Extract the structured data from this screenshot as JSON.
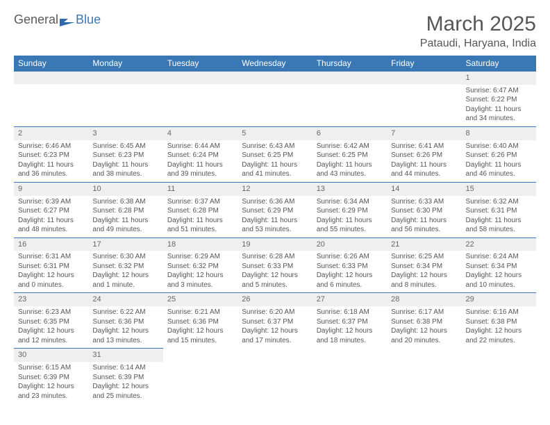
{
  "logo": {
    "general": "General",
    "blue": "Blue"
  },
  "title": "March 2025",
  "location": "Pataudi, Haryana, India",
  "colors": {
    "header_bg": "#3a78b5",
    "header_text": "#ffffff",
    "daynum_bg": "#efefef",
    "body_text": "#555555",
    "border": "#3a78b5"
  },
  "fonts": {
    "title_size": 30,
    "location_size": 16,
    "header_size": 12,
    "cell_size": 10
  },
  "weekdays": [
    "Sunday",
    "Monday",
    "Tuesday",
    "Wednesday",
    "Thursday",
    "Friday",
    "Saturday"
  ],
  "weeks": [
    [
      null,
      null,
      null,
      null,
      null,
      null,
      {
        "n": "1",
        "sr": "Sunrise: 6:47 AM",
        "ss": "Sunset: 6:22 PM",
        "dl": "Daylight: 11 hours and 34 minutes."
      }
    ],
    [
      {
        "n": "2",
        "sr": "Sunrise: 6:46 AM",
        "ss": "Sunset: 6:23 PM",
        "dl": "Daylight: 11 hours and 36 minutes."
      },
      {
        "n": "3",
        "sr": "Sunrise: 6:45 AM",
        "ss": "Sunset: 6:23 PM",
        "dl": "Daylight: 11 hours and 38 minutes."
      },
      {
        "n": "4",
        "sr": "Sunrise: 6:44 AM",
        "ss": "Sunset: 6:24 PM",
        "dl": "Daylight: 11 hours and 39 minutes."
      },
      {
        "n": "5",
        "sr": "Sunrise: 6:43 AM",
        "ss": "Sunset: 6:25 PM",
        "dl": "Daylight: 11 hours and 41 minutes."
      },
      {
        "n": "6",
        "sr": "Sunrise: 6:42 AM",
        "ss": "Sunset: 6:25 PM",
        "dl": "Daylight: 11 hours and 43 minutes."
      },
      {
        "n": "7",
        "sr": "Sunrise: 6:41 AM",
        "ss": "Sunset: 6:26 PM",
        "dl": "Daylight: 11 hours and 44 minutes."
      },
      {
        "n": "8",
        "sr": "Sunrise: 6:40 AM",
        "ss": "Sunset: 6:26 PM",
        "dl": "Daylight: 11 hours and 46 minutes."
      }
    ],
    [
      {
        "n": "9",
        "sr": "Sunrise: 6:39 AM",
        "ss": "Sunset: 6:27 PM",
        "dl": "Daylight: 11 hours and 48 minutes."
      },
      {
        "n": "10",
        "sr": "Sunrise: 6:38 AM",
        "ss": "Sunset: 6:28 PM",
        "dl": "Daylight: 11 hours and 49 minutes."
      },
      {
        "n": "11",
        "sr": "Sunrise: 6:37 AM",
        "ss": "Sunset: 6:28 PM",
        "dl": "Daylight: 11 hours and 51 minutes."
      },
      {
        "n": "12",
        "sr": "Sunrise: 6:36 AM",
        "ss": "Sunset: 6:29 PM",
        "dl": "Daylight: 11 hours and 53 minutes."
      },
      {
        "n": "13",
        "sr": "Sunrise: 6:34 AM",
        "ss": "Sunset: 6:29 PM",
        "dl": "Daylight: 11 hours and 55 minutes."
      },
      {
        "n": "14",
        "sr": "Sunrise: 6:33 AM",
        "ss": "Sunset: 6:30 PM",
        "dl": "Daylight: 11 hours and 56 minutes."
      },
      {
        "n": "15",
        "sr": "Sunrise: 6:32 AM",
        "ss": "Sunset: 6:31 PM",
        "dl": "Daylight: 11 hours and 58 minutes."
      }
    ],
    [
      {
        "n": "16",
        "sr": "Sunrise: 6:31 AM",
        "ss": "Sunset: 6:31 PM",
        "dl": "Daylight: 12 hours and 0 minutes."
      },
      {
        "n": "17",
        "sr": "Sunrise: 6:30 AM",
        "ss": "Sunset: 6:32 PM",
        "dl": "Daylight: 12 hours and 1 minute."
      },
      {
        "n": "18",
        "sr": "Sunrise: 6:29 AM",
        "ss": "Sunset: 6:32 PM",
        "dl": "Daylight: 12 hours and 3 minutes."
      },
      {
        "n": "19",
        "sr": "Sunrise: 6:28 AM",
        "ss": "Sunset: 6:33 PM",
        "dl": "Daylight: 12 hours and 5 minutes."
      },
      {
        "n": "20",
        "sr": "Sunrise: 6:26 AM",
        "ss": "Sunset: 6:33 PM",
        "dl": "Daylight: 12 hours and 6 minutes."
      },
      {
        "n": "21",
        "sr": "Sunrise: 6:25 AM",
        "ss": "Sunset: 6:34 PM",
        "dl": "Daylight: 12 hours and 8 minutes."
      },
      {
        "n": "22",
        "sr": "Sunrise: 6:24 AM",
        "ss": "Sunset: 6:34 PM",
        "dl": "Daylight: 12 hours and 10 minutes."
      }
    ],
    [
      {
        "n": "23",
        "sr": "Sunrise: 6:23 AM",
        "ss": "Sunset: 6:35 PM",
        "dl": "Daylight: 12 hours and 12 minutes."
      },
      {
        "n": "24",
        "sr": "Sunrise: 6:22 AM",
        "ss": "Sunset: 6:36 PM",
        "dl": "Daylight: 12 hours and 13 minutes."
      },
      {
        "n": "25",
        "sr": "Sunrise: 6:21 AM",
        "ss": "Sunset: 6:36 PM",
        "dl": "Daylight: 12 hours and 15 minutes."
      },
      {
        "n": "26",
        "sr": "Sunrise: 6:20 AM",
        "ss": "Sunset: 6:37 PM",
        "dl": "Daylight: 12 hours and 17 minutes."
      },
      {
        "n": "27",
        "sr": "Sunrise: 6:18 AM",
        "ss": "Sunset: 6:37 PM",
        "dl": "Daylight: 12 hours and 18 minutes."
      },
      {
        "n": "28",
        "sr": "Sunrise: 6:17 AM",
        "ss": "Sunset: 6:38 PM",
        "dl": "Daylight: 12 hours and 20 minutes."
      },
      {
        "n": "29",
        "sr": "Sunrise: 6:16 AM",
        "ss": "Sunset: 6:38 PM",
        "dl": "Daylight: 12 hours and 22 minutes."
      }
    ],
    [
      {
        "n": "30",
        "sr": "Sunrise: 6:15 AM",
        "ss": "Sunset: 6:39 PM",
        "dl": "Daylight: 12 hours and 23 minutes."
      },
      {
        "n": "31",
        "sr": "Sunrise: 6:14 AM",
        "ss": "Sunset: 6:39 PM",
        "dl": "Daylight: 12 hours and 25 minutes."
      },
      null,
      null,
      null,
      null,
      null
    ]
  ]
}
